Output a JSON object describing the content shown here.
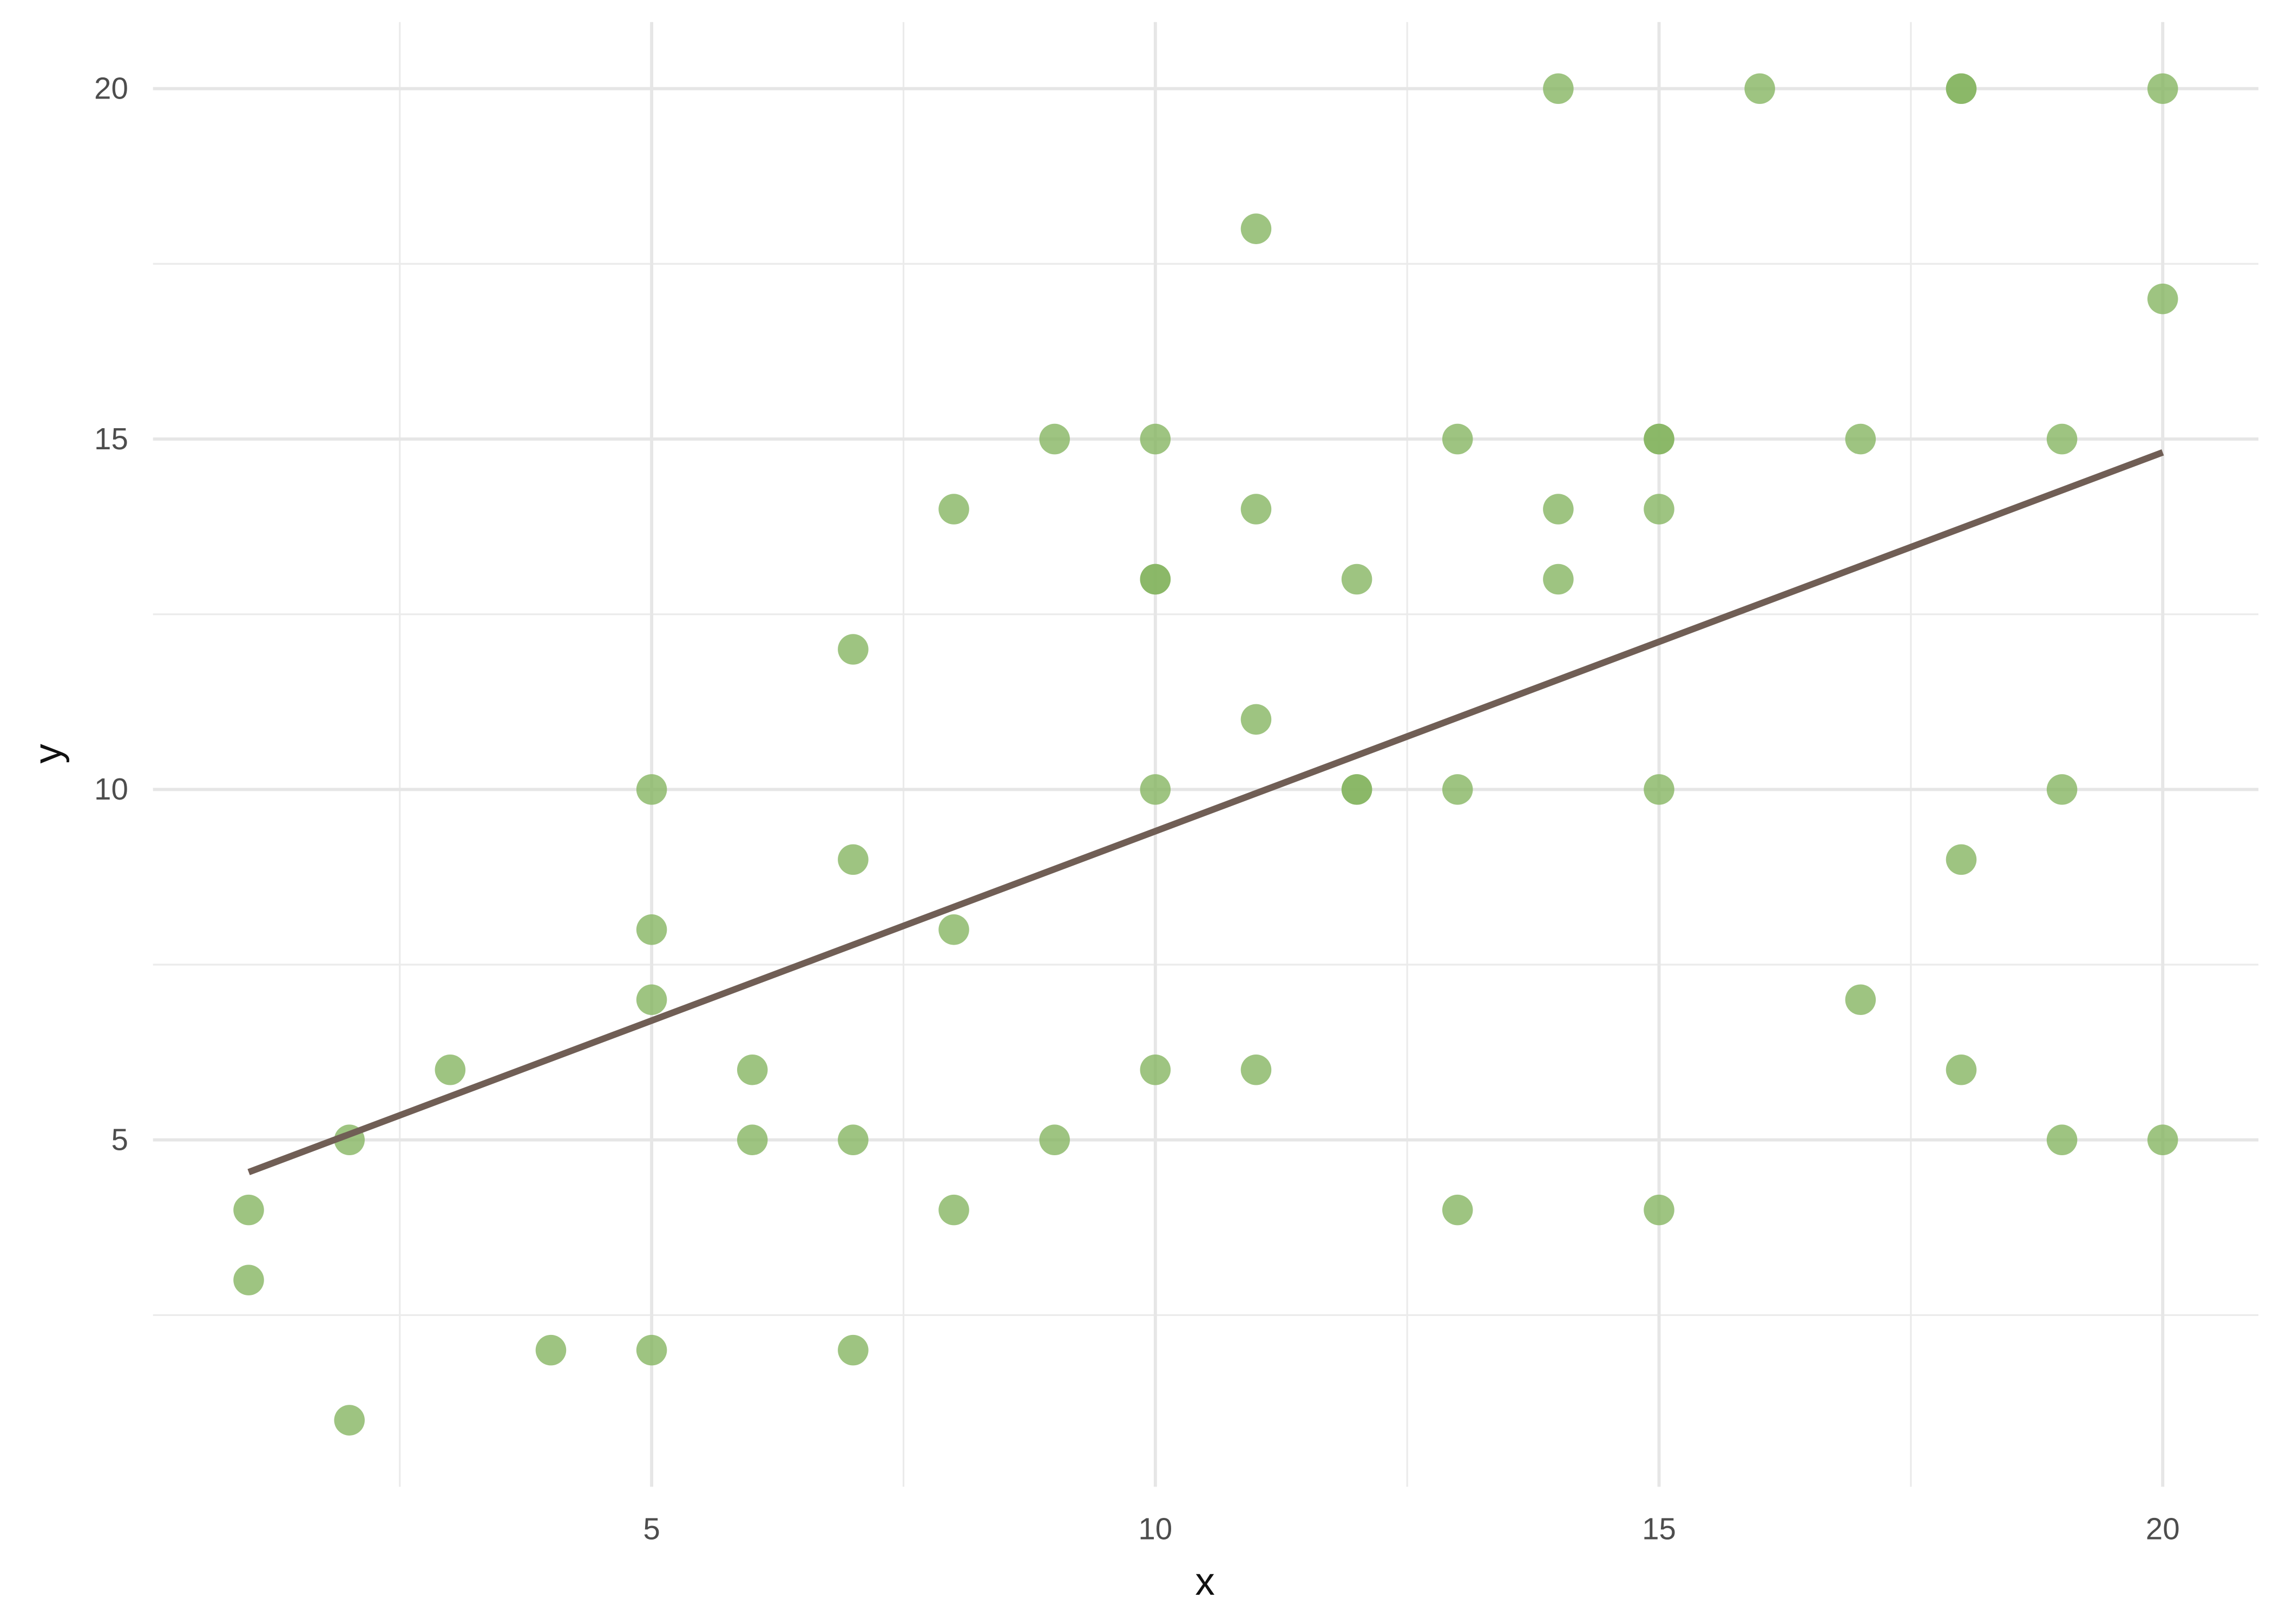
{
  "chart_data": {
    "type": "scatter",
    "x": [
      1,
      1,
      2,
      2,
      3,
      4,
      5,
      5,
      5,
      5,
      6,
      6,
      7,
      7,
      7,
      7,
      8,
      8,
      8,
      9,
      9,
      10,
      10,
      10,
      10,
      10,
      11,
      11,
      11,
      11,
      12,
      12,
      12,
      13,
      13,
      13,
      14,
      14,
      14,
      15,
      15,
      15,
      15,
      15,
      16,
      17,
      17,
      18,
      18,
      18,
      18,
      19,
      19,
      19,
      20,
      20,
      20
    ],
    "y": [
      4,
      3,
      5,
      1,
      6,
      2,
      2,
      10,
      8,
      7,
      6,
      5,
      12,
      9,
      5,
      2,
      14,
      8,
      4,
      15,
      5,
      15,
      13,
      13,
      10,
      6,
      18,
      14,
      11,
      6,
      13,
      10,
      10,
      15,
      10,
      4,
      20,
      14,
      13,
      15,
      15,
      14,
      10,
      4,
      20,
      15,
      7,
      20,
      20,
      9,
      6,
      15,
      10,
      5,
      20,
      17,
      5
    ],
    "color": "#86b562",
    "fit": {
      "x": [
        1,
        20
      ],
      "y": [
        4.54,
        14.81
      ],
      "color": "#705e55"
    },
    "xlabel": "x",
    "ylabel": "y",
    "xlim": [
      0.05,
      20.95
    ],
    "ylim": [
      0.05,
      20.95
    ],
    "xticks": [
      5,
      10,
      15,
      20
    ],
    "yticks": [
      5,
      10,
      15,
      20
    ],
    "xminor": [
      2.5,
      7.5,
      12.5,
      17.5
    ],
    "yminor": [
      2.5,
      7.5,
      12.5,
      17.5
    ],
    "grid": true
  }
}
